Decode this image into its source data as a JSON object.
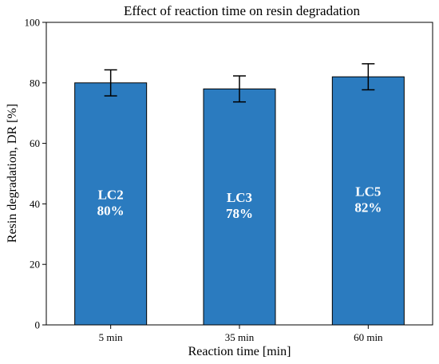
{
  "chart_data": {
    "type": "bar",
    "title": "Effect of reaction time on resin degradation",
    "xlabel": "Reaction time [min]",
    "ylabel": "Resin degradation, DR [%]",
    "categories": [
      "5 min",
      "35 min",
      "60 min"
    ],
    "values": [
      80,
      78,
      82
    ],
    "errors": [
      4.3,
      4.3,
      4.3
    ],
    "bar_labels": [
      {
        "name": "LC2",
        "value": "80%"
      },
      {
        "name": "LC3",
        "value": "78%"
      },
      {
        "name": "LC5",
        "value": "82%"
      }
    ],
    "ylim": [
      0,
      100
    ],
    "yticks": [
      0,
      20,
      40,
      60,
      80,
      100
    ],
    "grid": false,
    "legend": "none",
    "colors": {
      "bar": "#2b7bbf",
      "edge": "#000000",
      "error": "#000000",
      "label": "#ffffff"
    }
  }
}
